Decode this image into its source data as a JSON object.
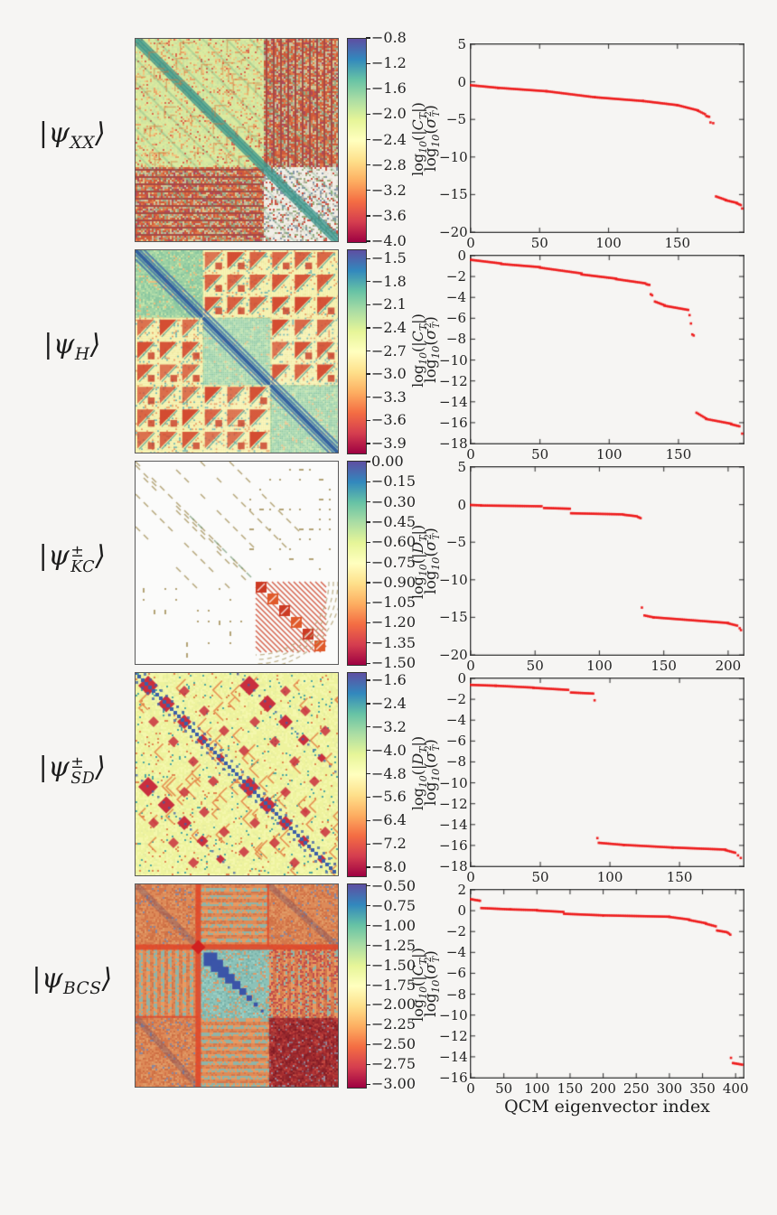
{
  "page": {
    "bg": "#f6f5f3",
    "xlabel": "QCM eigenvector index"
  },
  "marker_color": "#ee1c1c",
  "colormap": [
    "#5e4fa2",
    "#3288bd",
    "#66c2a5",
    "#abdda4",
    "#e6f598",
    "#ffffbf",
    "#fee08b",
    "#fdae61",
    "#f46d43",
    "#d53e4f",
    "#9e0142"
  ],
  "chart_data": [
    {
      "id": "psi_XX",
      "state_label": {
        "plain": "|ψ_XX⟩",
        "rich": [
          [
            "t",
            "|"
          ],
          [
            "i",
            "ψ"
          ],
          [
            "sub",
            "XX"
          ],
          [
            "t",
            "⟩"
          ]
        ]
      },
      "heatmap": {
        "type": "heatmap",
        "pattern": "xx"
      },
      "colorbar": {
        "label_plain": "log10(|C_T|)",
        "label_rich": [
          [
            "t",
            "log"
          ],
          [
            "sub",
            "10"
          ],
          [
            "t",
            "(|"
          ],
          [
            "i",
            "C"
          ],
          [
            "sub",
            "T"
          ],
          [
            "t",
            "|)"
          ]
        ],
        "tick_labels": [
          "−0.8",
          "−1.2",
          "−1.6",
          "−2.0",
          "−2.4",
          "−2.8",
          "−3.2",
          "−3.6",
          "−4.0"
        ],
        "pad": 0.0
      },
      "scatter": {
        "type": "scatter",
        "ylabel_plain": "log10(σ_T^2)",
        "xlim": [
          0,
          198
        ],
        "ylim": [
          -20,
          5
        ],
        "xtick_labels": [
          "0",
          "50",
          "100",
          "150"
        ],
        "ytick_labels": [
          "5",
          "0",
          "−5",
          "−10",
          "−15",
          "−20"
        ],
        "segments": [
          [
            0,
            -0.45,
            20,
            -0.8
          ],
          [
            20,
            -0.8,
            55,
            -1.25
          ],
          [
            55,
            -1.25,
            90,
            -2.05
          ],
          [
            90,
            -2.05,
            125,
            -2.55
          ],
          [
            125,
            -2.55,
            150,
            -3.1
          ],
          [
            150,
            -3.1,
            165,
            -3.8
          ],
          [
            165,
            -3.85,
            170,
            -4.3
          ],
          [
            171,
            -4.55,
            173,
            -4.65
          ],
          [
            178,
            -15.25,
            185,
            -15.7
          ],
          [
            185,
            -15.75,
            193,
            -16.1
          ],
          [
            193,
            -16.15,
            196,
            -16.4
          ]
        ],
        "points": [
          [
            174,
            -5.4
          ],
          [
            176,
            -5.5
          ],
          [
            197,
            -16.85
          ]
        ]
      }
    },
    {
      "id": "psi_H",
      "state_label": {
        "plain": "|ψ_H⟩",
        "rich": [
          [
            "t",
            "|"
          ],
          [
            "i",
            "ψ"
          ],
          [
            "sub",
            "H"
          ],
          [
            "t",
            "⟩"
          ]
        ]
      },
      "heatmap": {
        "type": "heatmap",
        "pattern": "h"
      },
      "colorbar": {
        "label_plain": "log10(|C_T|)",
        "label_rich": [
          [
            "t",
            "log"
          ],
          [
            "sub",
            "10"
          ],
          [
            "t",
            "(|"
          ],
          [
            "i",
            "C"
          ],
          [
            "sub",
            "T"
          ],
          [
            "t",
            "|)"
          ]
        ],
        "tick_labels": [
          "−1.5",
          "−1.8",
          "−2.1",
          "−2.4",
          "−2.7",
          "−3.0",
          "−3.3",
          "−3.6",
          "−3.9"
        ],
        "pad": 0.045
      },
      "scatter": {
        "type": "scatter",
        "ylabel_plain": "log10(σ_T^2)",
        "xlim": [
          0,
          197
        ],
        "ylim": [
          -18,
          0
        ],
        "xtick_labels": [
          "0",
          "50",
          "100",
          "150"
        ],
        "ytick_labels": [
          "0",
          "−2",
          "−4",
          "−6",
          "−8",
          "−10",
          "−12",
          "−14",
          "−16",
          "−18"
        ],
        "segments": [
          [
            0,
            -0.4,
            22,
            -0.75
          ],
          [
            22,
            -0.8,
            50,
            -1.1
          ],
          [
            50,
            -1.15,
            80,
            -1.7
          ],
          [
            80,
            -1.8,
            105,
            -2.2
          ],
          [
            105,
            -2.25,
            126,
            -2.65
          ],
          [
            127,
            -2.75,
            129,
            -2.8
          ],
          [
            133,
            -4.4,
            140,
            -4.75
          ],
          [
            140,
            -4.8,
            157,
            -5.2
          ],
          [
            163,
            -15.05,
            170,
            -15.6
          ],
          [
            170,
            -15.65,
            188,
            -16.1
          ],
          [
            188,
            -16.15,
            194,
            -16.35
          ]
        ],
        "points": [
          [
            130,
            -3.7
          ],
          [
            131,
            -3.8
          ],
          [
            158,
            -5.7
          ],
          [
            159,
            -6.5
          ],
          [
            160,
            -7.55
          ],
          [
            161,
            -7.65
          ],
          [
            196,
            -17.05
          ]
        ]
      }
    },
    {
      "id": "psi_KC_pm",
      "state_label": {
        "plain": "|ψ±_KC⟩",
        "rich": [
          [
            "t",
            "|"
          ],
          [
            "i",
            "ψ"
          ],
          [
            "supsub",
            "±",
            "KC"
          ],
          [
            "t",
            "⟩"
          ]
        ]
      },
      "heatmap": {
        "type": "heatmap",
        "pattern": "kc"
      },
      "colorbar": {
        "label_plain": "log10(|D_T|)",
        "label_rich": [
          [
            "t",
            "log"
          ],
          [
            "sub",
            "10"
          ],
          [
            "t",
            "(|"
          ],
          [
            "i",
            "D"
          ],
          [
            "sub",
            "T"
          ],
          [
            "t",
            "|)"
          ]
        ],
        "tick_labels": [
          "0.00",
          "−0.15",
          "−0.30",
          "−0.45",
          "−0.60",
          "−0.75",
          "−0.90",
          "−1.05",
          "−1.20",
          "−1.35",
          "−1.50"
        ],
        "pad": 0.004
      },
      "scatter": {
        "type": "scatter",
        "ylabel_plain": "log10(σ_T^2)",
        "xlim": [
          0,
          212
        ],
        "ylim": [
          -20,
          5
        ],
        "xtick_labels": [
          "0",
          "50",
          "100",
          "150",
          "200"
        ],
        "ytick_labels": [
          "5",
          "0",
          "−5",
          "−10",
          "−15",
          "−20"
        ],
        "segments": [
          [
            0,
            -0.05,
            8,
            -0.1
          ],
          [
            8,
            -0.12,
            55,
            -0.22
          ],
          [
            57,
            -0.45,
            77,
            -0.55
          ],
          [
            78,
            -1.15,
            118,
            -1.3
          ],
          [
            119,
            -1.35,
            129,
            -1.55
          ],
          [
            130,
            -1.65,
            132,
            -1.8
          ],
          [
            135,
            -14.75,
            142,
            -15.0
          ],
          [
            142,
            -15.0,
            200,
            -15.75
          ],
          [
            200,
            -15.8,
            207,
            -16.1
          ]
        ],
        "points": [
          [
            133,
            -13.7
          ],
          [
            209,
            -16.45
          ],
          [
            210,
            -16.7
          ]
        ]
      }
    },
    {
      "id": "psi_SD_pm",
      "state_label": {
        "plain": "|ψ±_SD⟩",
        "rich": [
          [
            "t",
            "|"
          ],
          [
            "i",
            "ψ"
          ],
          [
            "supsub",
            "±",
            "SD"
          ],
          [
            "t",
            "⟩"
          ]
        ]
      },
      "heatmap": {
        "type": "heatmap",
        "pattern": "sd"
      },
      "colorbar": {
        "label_plain": "log10(|D_T|)",
        "label_rich": [
          [
            "t",
            "log"
          ],
          [
            "sub",
            "10"
          ],
          [
            "t",
            "(|"
          ],
          [
            "i",
            "D"
          ],
          [
            "sub",
            "T"
          ],
          [
            "t",
            "|)"
          ]
        ],
        "tick_labels": [
          "−1.6",
          "−2.4",
          "−3.2",
          "−4.0",
          "−4.8",
          "−5.6",
          "−6.4",
          "−7.2",
          "−8.0"
        ],
        "pad": 0.04
      },
      "scatter": {
        "type": "scatter",
        "ylabel_plain": "log10(σ_T^2)",
        "xlim": [
          0,
          196
        ],
        "ylim": [
          -18,
          0
        ],
        "xtick_labels": [
          "0",
          "50",
          "100",
          "150"
        ],
        "ytick_labels": [
          "0",
          "−2",
          "−4",
          "−6",
          "−8",
          "−10",
          "−12",
          "−14",
          "−16",
          "−18"
        ],
        "segments": [
          [
            0,
            -0.62,
            18,
            -0.7
          ],
          [
            18,
            -0.7,
            45,
            -0.88
          ],
          [
            45,
            -0.9,
            70,
            -1.1
          ],
          [
            72,
            -1.35,
            88,
            -1.45
          ],
          [
            92,
            -15.75,
            110,
            -15.95
          ],
          [
            110,
            -15.95,
            145,
            -16.2
          ],
          [
            145,
            -16.2,
            183,
            -16.4
          ],
          [
            183,
            -16.45,
            190,
            -16.7
          ]
        ],
        "points": [
          [
            89,
            -2.1
          ],
          [
            91,
            -15.3
          ],
          [
            192,
            -16.95
          ],
          [
            194,
            -17.2
          ]
        ]
      }
    },
    {
      "id": "psi_BCS",
      "state_label": {
        "plain": "|ψ_BCS⟩",
        "rich": [
          [
            "t",
            "|"
          ],
          [
            "i",
            "ψ"
          ],
          [
            "sub",
            "BCS"
          ],
          [
            "t",
            "⟩"
          ]
        ]
      },
      "heatmap": {
        "type": "heatmap",
        "pattern": "bcs"
      },
      "colorbar": {
        "label_plain": "log10(|C_T|)",
        "label_rich": [
          [
            "t",
            "log"
          ],
          [
            "sub",
            "10"
          ],
          [
            "t",
            "(|"
          ],
          [
            "i",
            "C"
          ],
          [
            "sub",
            "T"
          ],
          [
            "t",
            "|)"
          ]
        ],
        "tick_labels": [
          "−0.50",
          "−0.75",
          "−1.00",
          "−1.25",
          "−1.50",
          "−1.75",
          "−2.00",
          "−2.25",
          "−2.50",
          "−2.75",
          "−3.00"
        ],
        "pad": 0.012
      },
      "scatter": {
        "type": "scatter",
        "ylabel_plain": "log10(σ_T^2)",
        "xlim": [
          0,
          412
        ],
        "ylim": [
          -16,
          2
        ],
        "xtick_labels": [
          "0",
          "50",
          "100",
          "150",
          "200",
          "250",
          "300",
          "350",
          "400"
        ],
        "ytick_labels": [
          "2",
          "0",
          "−2",
          "−4",
          "−6",
          "−8",
          "−10",
          "−12",
          "−14",
          "−16"
        ],
        "segments": [
          [
            0,
            1.1,
            14,
            0.95
          ],
          [
            16,
            0.25,
            60,
            0.12
          ],
          [
            60,
            0.12,
            100,
            0.05
          ],
          [
            100,
            0.02,
            140,
            -0.12
          ],
          [
            141,
            -0.3,
            200,
            -0.45
          ],
          [
            200,
            -0.45,
            300,
            -0.58
          ],
          [
            300,
            -0.6,
            330,
            -0.85
          ],
          [
            330,
            -0.9,
            355,
            -1.2
          ],
          [
            355,
            -1.25,
            370,
            -1.5
          ],
          [
            372,
            -1.9,
            386,
            -2.05
          ],
          [
            388,
            -2.1,
            392,
            -2.3
          ],
          [
            396,
            -14.6,
            410,
            -14.75
          ]
        ],
        "points": [
          [
            393,
            -14.1
          ]
        ]
      },
      "xlabel": "QCM eigenvector index"
    }
  ],
  "ylabel_rich": [
    [
      "t",
      "log"
    ],
    [
      "sub",
      "10"
    ],
    [
      "t",
      "("
    ],
    [
      "i",
      "σ"
    ],
    [
      "supsub",
      "2",
      "T"
    ],
    [
      "t",
      ")"
    ]
  ]
}
